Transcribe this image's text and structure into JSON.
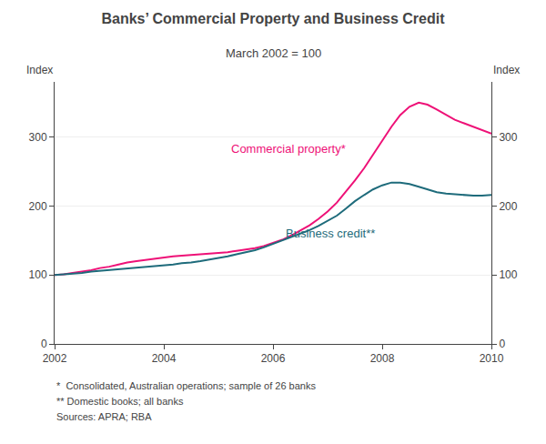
{
  "chart_data": {
    "type": "line",
    "title": "Banks’ Commercial Property and Business Credit",
    "subtitle": "March 2002 = 100",
    "ylabel": "Index",
    "y2label": "Index",
    "notes": [
      "*  Consolidated, Australian operations; sample of 26 banks",
      "** Domestic books; all banks",
      "Sources: APRA; RBA"
    ],
    "x": [
      2002.0,
      2002.17,
      2002.33,
      2002.5,
      2002.67,
      2002.83,
      2003.0,
      2003.17,
      2003.33,
      2003.5,
      2003.67,
      2003.83,
      2004.0,
      2004.17,
      2004.33,
      2004.5,
      2004.67,
      2004.83,
      2005.0,
      2005.17,
      2005.33,
      2005.5,
      2005.67,
      2005.83,
      2006.0,
      2006.17,
      2006.33,
      2006.5,
      2006.67,
      2006.83,
      2007.0,
      2007.17,
      2007.33,
      2007.5,
      2007.67,
      2007.83,
      2008.0,
      2008.17,
      2008.33,
      2008.5,
      2008.67,
      2008.83,
      2009.0,
      2009.17,
      2009.33,
      2009.5,
      2009.67,
      2009.83,
      2010.0
    ],
    "series": [
      {
        "name": "Commercial property*",
        "color": "#EE1177",
        "values": [
          100,
          101,
          103,
          105,
          107,
          110,
          112,
          115,
          118,
          120,
          122,
          124,
          126,
          127,
          128,
          129,
          130,
          131,
          132,
          133,
          135,
          137,
          139,
          142,
          146,
          151,
          157,
          164,
          172,
          181,
          192,
          205,
          220,
          237,
          255,
          274,
          295,
          315,
          332,
          344,
          350,
          347,
          340,
          332,
          325,
          320,
          315,
          310,
          305
        ]
      },
      {
        "name": "Business credit**",
        "color": "#1E6B7B",
        "values": [
          100,
          101,
          102,
          103,
          105,
          106,
          108,
          109,
          110,
          111,
          112,
          113,
          114,
          115,
          117,
          118,
          120,
          122,
          124,
          127,
          130,
          133,
          136,
          140,
          145,
          150,
          155,
          160,
          165,
          171,
          178,
          186,
          196,
          207,
          216,
          224,
          230,
          234,
          234,
          232,
          228,
          224,
          220,
          218,
          217,
          216,
          215,
          215,
          216
        ]
      }
    ],
    "annotations": [
      {
        "text": "Commercial property*",
        "x": 2005.2,
        "y": 270,
        "color": "#EE1177"
      },
      {
        "text": "Business credit**",
        "x": 2006.2,
        "y": 148,
        "color": "#1E6B7B"
      }
    ],
    "xlim": [
      2002,
      2010
    ],
    "xticks": [
      2002,
      2004,
      2006,
      2008,
      2010
    ],
    "ylim": [
      0,
      380
    ],
    "yticks": [
      0,
      100,
      200,
      300
    ],
    "y2lim": [
      0,
      380
    ],
    "y2ticks": [
      0,
      100,
      200,
      300
    ],
    "grid": true
  }
}
